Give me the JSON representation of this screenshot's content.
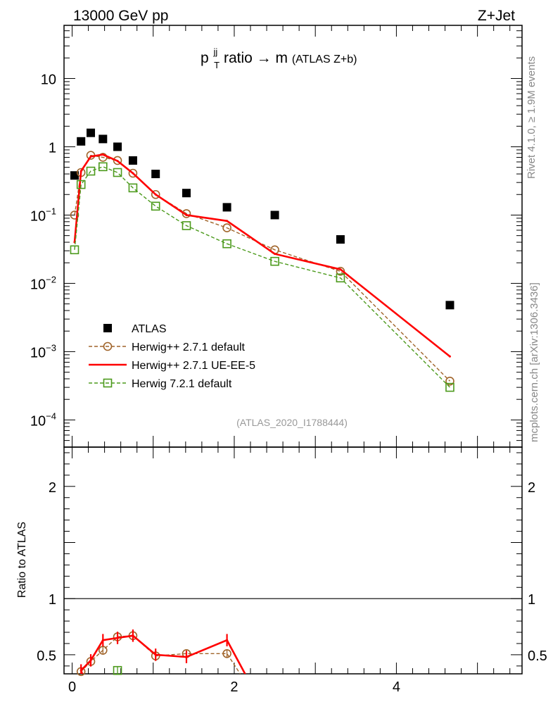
{
  "header": {
    "energy": "13000 GeV pp",
    "process": "Z+Jet"
  },
  "side": {
    "rivet": "Rivet 4.1.0, ≥ 1.9M events",
    "mcplots": "mcplots.cern.ch [arXiv:1306.3436]"
  },
  "colors": {
    "atlas": "#000000",
    "herwigpp_default": "#a0642a",
    "herwigpp_ueee5": "#ff0000",
    "herwig721": "#4c9a1c"
  },
  "chart_data": {
    "type": "line",
    "title": {
      "main": "p",
      "sup": "jj",
      "sub": "T",
      "rest": " ratio → m",
      "small": " (ATLAS Z+b)"
    },
    "watermark": "(ATLAS_2020_I1788444)",
    "legend_position": "middle-left",
    "xlim": [
      -0.1,
      5.55
    ],
    "ylim_log": [
      4e-05,
      60
    ],
    "ratio_ylim": [
      0.33,
      2.35
    ],
    "ratio_ylabel": "Ratio to ATLAS",
    "x_ticks": [
      "0",
      "2",
      "4"
    ],
    "y_ticks": [
      {
        "v": 10,
        "base": "10",
        "exp": ""
      },
      {
        "v": 1,
        "base": "1",
        "exp": ""
      },
      {
        "v": 0.1,
        "base": "10",
        "exp": "−1"
      },
      {
        "v": 0.01,
        "base": "10",
        "exp": "−2"
      },
      {
        "v": 0.001,
        "base": "10",
        "exp": "−3"
      },
      {
        "v": 0.0001,
        "base": "10",
        "exp": "−4"
      }
    ],
    "ratio_ticks": [
      "0.5",
      "1",
      "2"
    ],
    "x": [
      0.03,
      0.11,
      0.23,
      0.38,
      0.56,
      0.75,
      1.03,
      1.41,
      1.91,
      2.5,
      3.31,
      4.66
    ],
    "series": [
      {
        "name": "ATLAS",
        "style": "data",
        "values": [
          0.38,
          1.2,
          1.6,
          1.3,
          1.0,
          0.63,
          0.4,
          0.21,
          0.13,
          0.1,
          0.044,
          0.0048
        ]
      },
      {
        "name": "Herwig++ 2.7.1 default",
        "style": "circle-dashed",
        "values": [
          0.1,
          0.42,
          0.75,
          0.7,
          0.63,
          0.41,
          0.2,
          0.105,
          0.065,
          0.031,
          0.015,
          0.00037
        ],
        "ratio": [
          null,
          0.35,
          0.44,
          0.54,
          0.66,
          0.67,
          0.49,
          0.51,
          0.51,
          null,
          null,
          null
        ]
      },
      {
        "name": "Herwig++ 2.7.1 UE-EE-5",
        "style": "solid",
        "values": [
          0.04,
          0.44,
          0.72,
          0.77,
          0.62,
          0.41,
          0.2,
          0.1,
          0.082,
          0.027,
          0.016,
          0.00085
        ],
        "ratio": [
          null,
          0.36,
          0.45,
          0.63,
          0.65,
          0.67,
          0.5,
          0.48,
          0.63,
          null,
          null,
          null
        ]
      },
      {
        "name": "Herwig 7.2.1 default",
        "style": "square-dashed",
        "values": [
          0.031,
          0.28,
          0.44,
          0.51,
          0.42,
          0.25,
          0.135,
          0.07,
          0.038,
          0.021,
          0.012,
          0.0003
        ],
        "ratio": [
          null,
          null,
          null,
          null,
          0.36,
          null,
          null,
          null,
          null,
          null,
          null,
          null
        ]
      }
    ]
  }
}
